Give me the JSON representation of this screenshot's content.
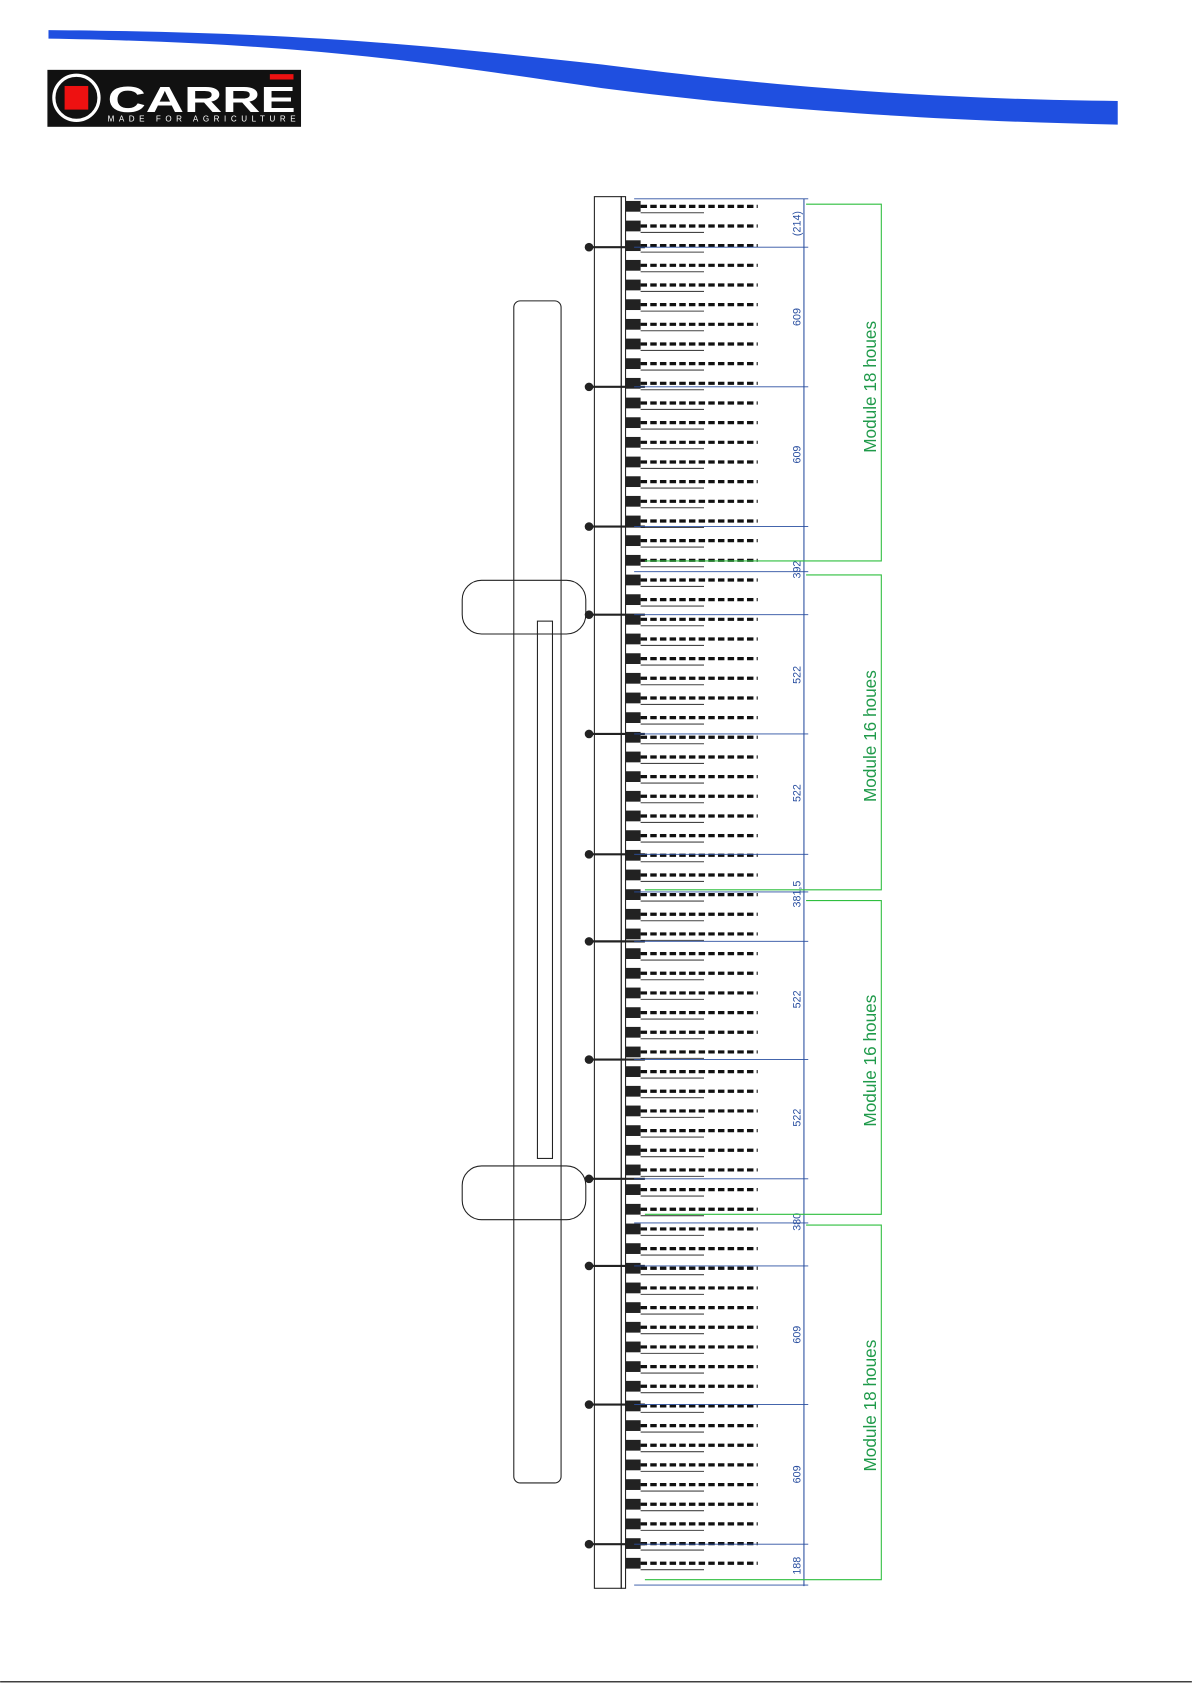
{
  "header": {
    "brand": "CARRE",
    "tagline": "MADE FOR AGRICULTURE"
  },
  "drawing": {
    "dimensions": [
      "(214)",
      "609",
      "609",
      "392",
      "522",
      "522",
      "381,5",
      "522",
      "522",
      "380",
      "609",
      "609",
      "188"
    ],
    "modules": [
      "Module 18 houes",
      "Module 16 houes",
      "Module 16 houes",
      "Module 18 houes"
    ]
  }
}
